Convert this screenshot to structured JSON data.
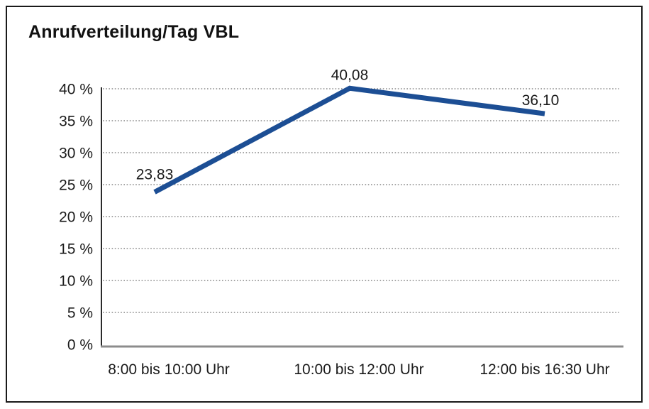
{
  "chart_data": {
    "type": "line",
    "title": "Anrufverteilung/Tag VBL",
    "categories": [
      "8:00 bis 10:00 Uhr",
      "10:00 bis 12:00 Uhr",
      "12:00 bis 16:30 Uhr"
    ],
    "values": [
      23.83,
      40.08,
      36.1
    ],
    "value_labels": [
      "23,83",
      "40,08",
      "36,10"
    ],
    "xlabel": "",
    "ylabel": "",
    "ylim": [
      0,
      40
    ],
    "ytick_step": 5,
    "ytick_labels": [
      "0 %",
      "5 %",
      "10 %",
      "15 %",
      "20 %",
      "25 %",
      "30 %",
      "35 %",
      "40 %"
    ],
    "grid": "horizontal-dotted",
    "legend": "none",
    "line_color": "#1c4e94",
    "grid_color": "#6f6f6f",
    "axis_color": "#2a2a2a",
    "baseline_color": "#8c8c8c",
    "text_color": "#1a1a1a",
    "border_color": "#1a1a1a"
  }
}
